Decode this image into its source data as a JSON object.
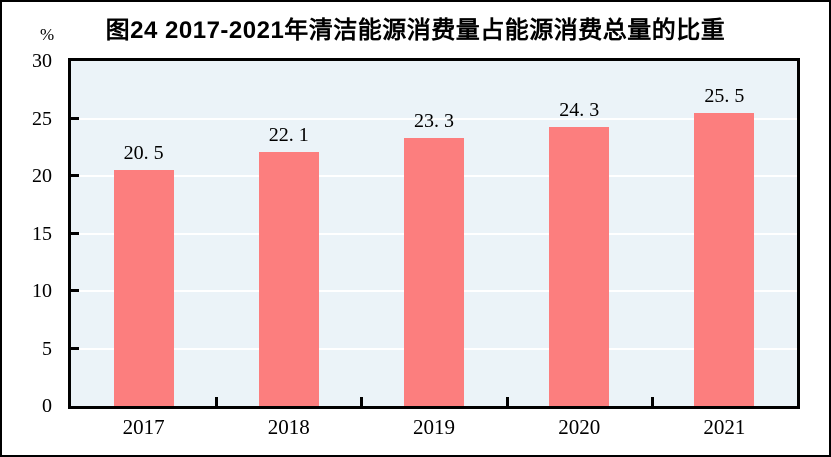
{
  "figure": {
    "title": "图24  2017-2021年清洁能源消费量占能源消费总量的比重",
    "y_axis_unit": "%"
  },
  "colors": {
    "bar_fill": "#FC7E7E",
    "plot_background": "#EBF3F8",
    "gridline": "#FFFFFF",
    "axis": "#000000",
    "text": "#000000"
  },
  "chart_data": {
    "type": "bar",
    "title": "图24 2017-2021年清洁能源消费量占能源消费总量的比重",
    "categories": [
      "2017",
      "2018",
      "2019",
      "2020",
      "2021"
    ],
    "values": [
      20.5,
      22.1,
      23.3,
      24.3,
      25.5
    ],
    "data_labels": [
      "20. 5",
      "22. 1",
      "23. 3",
      "24. 3",
      "25. 5"
    ],
    "xlabel": "",
    "ylabel": "%",
    "ylim": [
      0,
      30
    ],
    "yticks": [
      0,
      5,
      10,
      15,
      20,
      25,
      30
    ],
    "gridline_values": [
      5,
      10,
      15,
      20,
      25
    ],
    "grid": true,
    "legend": false
  }
}
